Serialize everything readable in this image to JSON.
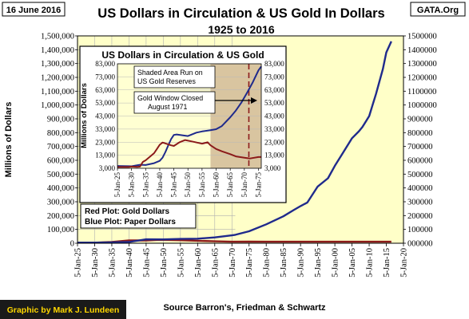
{
  "header": {
    "date": "16 June 2016",
    "title": "US Dollars in Circulation & US Gold In Dollars",
    "subtitle": "1925 to 2016",
    "site": "GATA.Org"
  },
  "footer": {
    "credit": "Graphic by Mark J. Lundeen",
    "source": "Source Barron's, Friedman & Schwartz"
  },
  "colors": {
    "background": "#ffffff",
    "plot_area": "#ffffc8",
    "inset_background": "#ffffd2",
    "shaded_area": "#d9c5a0",
    "paper_dollars": "#1f2a8c",
    "gold_dollars": "#8b1a1a",
    "gridline": "#b0b0b0",
    "footer_band": "#1a1a1a",
    "footer_text": "#ffd700"
  },
  "chart_data": [
    {
      "type": "line",
      "title": "US Dollars in Circulation & US Gold In Dollars",
      "ylabel": "Millions of Dollars",
      "ylim": [
        0,
        1500000
      ],
      "yticks": [
        0,
        100000,
        200000,
        300000,
        400000,
        500000,
        600000,
        700000,
        800000,
        900000,
        1000000,
        1100000,
        1200000,
        1300000,
        1400000,
        1500000
      ],
      "ytick_labels_left": [
        "0",
        "100,000",
        "200,000",
        "300,000",
        "400,000",
        "500,000",
        "600,000",
        "700,000",
        "800,000",
        "900,000",
        "1,000,000",
        "1,100,000",
        "1,200,000",
        "1,300,000",
        "1,400,000",
        "1,500,000"
      ],
      "ytick_labels_right": [
        "000000",
        "100000",
        "200000",
        "300000",
        "400000",
        "500000",
        "600000",
        "700000",
        "800000",
        "900000",
        "1000000",
        "1100000",
        "1200000",
        "1300000",
        "1400000",
        "1500000"
      ],
      "xlim": [
        1925,
        2020
      ],
      "xtick_labels": [
        "5-Jan-25",
        "5-Jan-30",
        "5-Jan-35",
        "5-Jan-40",
        "5-Jan-45",
        "5-Jan-50",
        "5-Jan-55",
        "5-Jan-60",
        "5-Jan-65",
        "5-Jan-70",
        "5-Jan-75",
        "5-Jan-80",
        "5-Jan-85",
        "5-Jan-90",
        "5-Jan-95",
        "5-Jan-00",
        "5-Jan-05",
        "5-Jan-10",
        "5-Jan-15",
        "5-Jan-20"
      ],
      "grid": true,
      "shaded_region": [
        1971,
        2020
      ],
      "legend_notes": [
        "Red Plot: Gold Dollars",
        "Blue Plot: Paper Dollars"
      ],
      "series": [
        {
          "name": "Blue Plot: Paper Dollars",
          "color": "#1f2a8c",
          "x": [
            1925,
            1930,
            1935,
            1940,
            1945,
            1950,
            1955,
            1960,
            1965,
            1970,
            1971,
            1975,
            1980,
            1985,
            1988,
            1990,
            1992,
            1995,
            1998,
            2000,
            2002,
            2005,
            2007,
            2008,
            2009,
            2010,
            2011,
            2012,
            2013,
            2014,
            2015,
            2016.45
          ],
          "y": [
            4800,
            4500,
            5500,
            8700,
            28500,
            27700,
            31200,
            32900,
            42100,
            57100,
            61000,
            86500,
            137000,
            195000,
            240000,
            269000,
            295000,
            410000,
            470000,
            560000,
            640000,
            760000,
            810000,
            840000,
            880000,
            920000,
            1000000,
            1080000,
            1170000,
            1260000,
            1380000,
            1460000
          ]
        },
        {
          "name": "Red Plot: Gold Dollars",
          "color": "#8b1a1a",
          "x": [
            1925,
            1930,
            1934,
            1935,
            1940,
            1945,
            1949,
            1955,
            1960,
            1965,
            1970,
            1975,
            1980,
            1990,
            2000,
            2010,
            2016.45
          ],
          "y": [
            4000,
            4300,
            7900,
            9100,
            21000,
            20100,
            24600,
            21800,
            17800,
            13800,
            11100,
            11600,
            11200,
            11100,
            11000,
            11000,
            11000
          ]
        }
      ]
    },
    {
      "type": "line",
      "title": "US Dollars in Circulation & US Gold",
      "ylabel": "Millions of Dollars",
      "ylim": [
        3000,
        83000
      ],
      "yticks": [
        3000,
        13000,
        23000,
        33000,
        43000,
        53000,
        63000,
        73000,
        83000
      ],
      "ytick_labels": [
        "3,000",
        "13,000",
        "23,000",
        "33,000",
        "43,000",
        "53,000",
        "63,000",
        "73,000",
        "83,000"
      ],
      "xlim": [
        1925,
        1976
      ],
      "xtick_labels": [
        "5-Jan-25",
        "5-Jan-30",
        "5-Jan-35",
        "5-Jan-40",
        "5-Jan-45",
        "5-Jan-50",
        "5-Jan-55",
        "5-Jan-60",
        "5-Jan-65",
        "5-Jan-70",
        "5-Jan-75"
      ],
      "shaded_region": [
        1958,
        1976
      ],
      "vline": 1971.6,
      "annotations": [
        "Shaded Area Run on",
        "US Gold Reserves",
        "Gold Window Closed",
        "August 1971"
      ],
      "series": [
        {
          "name": "Blue Plot: Paper Dollars",
          "color": "#1f2a8c",
          "x": [
            1925,
            1929,
            1930,
            1933,
            1935,
            1938,
            1940,
            1941,
            1942,
            1943,
            1944,
            1945,
            1946,
            1947,
            1950,
            1953,
            1955,
            1958,
            1960,
            1962,
            1965,
            1967,
            1969,
            1971,
            1973,
            1975,
            1976
          ],
          "y": [
            4800,
            4600,
            4500,
            5700,
            5500,
            6900,
            8700,
            11200,
            15400,
            20400,
            25300,
            28500,
            28900,
            28600,
            27700,
            30300,
            31200,
            32200,
            32900,
            35300,
            42100,
            47200,
            53500,
            61000,
            68900,
            78000,
            81000
          ]
        },
        {
          "name": "Red Plot: Gold Dollars",
          "color": "#8b1a1a",
          "x": [
            1925,
            1929,
            1930,
            1932,
            1933,
            1934,
            1935,
            1937,
            1938,
            1939,
            1940,
            1941,
            1944,
            1945,
            1947,
            1949,
            1952,
            1955,
            1957,
            1958,
            1960,
            1962,
            1965,
            1967,
            1970,
            1972,
            1975,
            1976
          ],
          "y": [
            4000,
            4000,
            4300,
            4100,
            4300,
            7900,
            9100,
            12800,
            14600,
            17800,
            21000,
            22700,
            20600,
            20100,
            22900,
            24600,
            23300,
            21800,
            22900,
            20600,
            17800,
            16000,
            13800,
            12100,
            11100,
            10500,
            11600,
            11600
          ]
        }
      ]
    }
  ]
}
